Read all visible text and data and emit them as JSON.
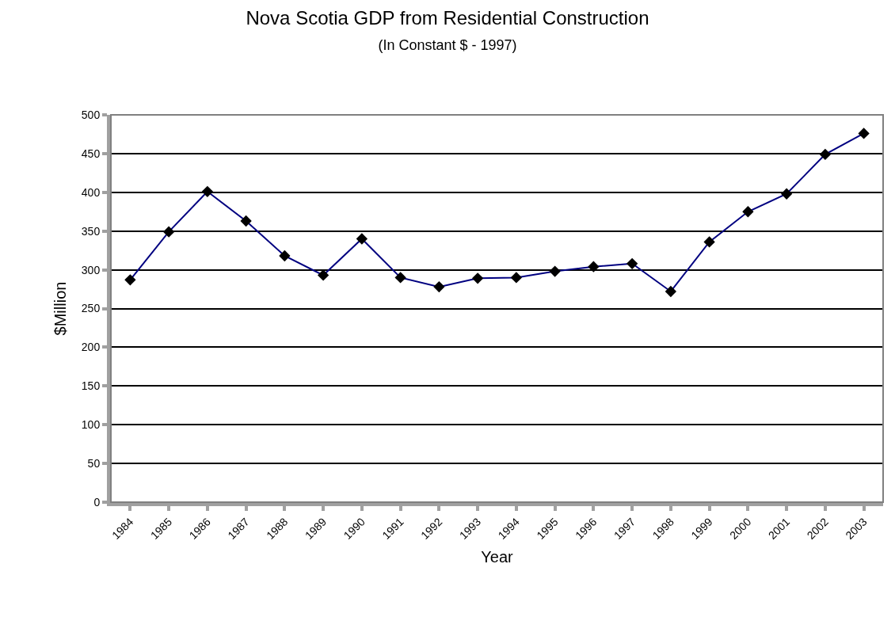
{
  "chart_data": {
    "type": "line",
    "title": "Nova Scotia GDP from Residential Construction",
    "subtitle": "(In Constant $ - 1997)",
    "xlabel": "Year",
    "ylabel": "$Million",
    "categories": [
      "1984",
      "1985",
      "1986",
      "1987",
      "1988",
      "1989",
      "1990",
      "1991",
      "1992",
      "1993",
      "1994",
      "1995",
      "1996",
      "1997",
      "1998",
      "1999",
      "2000",
      "2001",
      "2002",
      "2003"
    ],
    "series": [
      {
        "color": "#000080",
        "values": [
          287,
          349,
          401,
          363,
          318,
          293,
          340,
          290,
          278,
          289,
          290,
          298,
          304,
          308,
          272,
          336,
          375,
          398,
          449,
          476
        ]
      }
    ],
    "ylim": [
      0,
      500
    ],
    "yticks": [
      0,
      50,
      100,
      150,
      200,
      250,
      300,
      350,
      400,
      450,
      500
    ],
    "grid": "y",
    "marker": "diamond",
    "line_style": "solid"
  }
}
